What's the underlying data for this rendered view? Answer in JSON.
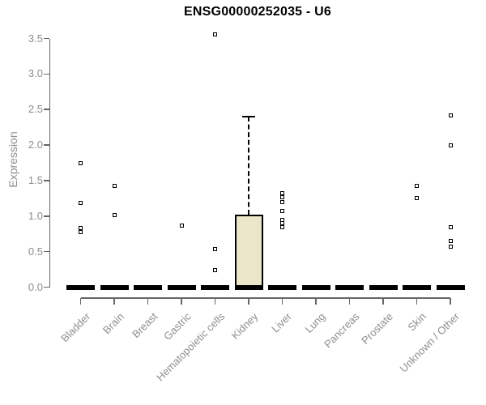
{
  "chart_data": {
    "type": "boxplot",
    "title": "ENSG00000252035 - U6",
    "ylabel": "Expression",
    "xlabel": "",
    "ylim": [
      0,
      3.5
    ],
    "yticks": [
      0.0,
      0.5,
      1.0,
      1.5,
      2.0,
      2.5,
      3.0,
      3.5
    ],
    "grid": false,
    "legend": "none",
    "x_label_rotation_deg": 45,
    "categories": [
      "Bladder",
      "Brain",
      "Breast",
      "Gastric",
      "Hematopoietic cells",
      "Kidney",
      "Liver",
      "Lung",
      "Pancreas",
      "Prostate",
      "Skin",
      "Unknown / Other"
    ],
    "boxes": [
      {
        "category": "Bladder",
        "q1": 0,
        "median": 0,
        "q3": 0,
        "whisker_low": 0,
        "whisker_high": 0,
        "outliers": [
          1.74,
          1.19,
          0.83,
          0.77
        ]
      },
      {
        "category": "Brain",
        "q1": 0,
        "median": 0,
        "q3": 0,
        "whisker_low": 0,
        "whisker_high": 0,
        "outliers": [
          1.43,
          1.02
        ]
      },
      {
        "category": "Breast",
        "q1": 0,
        "median": 0,
        "q3": 0,
        "whisker_low": 0,
        "whisker_high": 0,
        "outliers": []
      },
      {
        "category": "Gastric",
        "q1": 0,
        "median": 0,
        "q3": 0,
        "whisker_low": 0,
        "whisker_high": 0,
        "outliers": [
          0.87
        ]
      },
      {
        "category": "Hematopoietic cells",
        "q1": 0,
        "median": 0,
        "q3": 0,
        "whisker_low": 0,
        "whisker_high": 0,
        "outliers": [
          3.56,
          0.54,
          0.24
        ]
      },
      {
        "category": "Kidney",
        "q1": 0,
        "median": 0,
        "q3": 1.02,
        "whisker_low": 0,
        "whisker_high": 2.4,
        "outliers": []
      },
      {
        "category": "Liver",
        "q1": 0,
        "median": 0,
        "q3": 0,
        "whisker_low": 0,
        "whisker_high": 0,
        "outliers": [
          1.32,
          1.27,
          1.2,
          1.07,
          0.95,
          0.9,
          0.84
        ]
      },
      {
        "category": "Lung",
        "q1": 0,
        "median": 0,
        "q3": 0,
        "whisker_low": 0,
        "whisker_high": 0,
        "outliers": []
      },
      {
        "category": "Pancreas",
        "q1": 0,
        "median": 0,
        "q3": 0,
        "whisker_low": 0,
        "whisker_high": 0,
        "outliers": []
      },
      {
        "category": "Prostate",
        "q1": 0,
        "median": 0,
        "q3": 0,
        "whisker_low": 0,
        "whisker_high": 0,
        "outliers": []
      },
      {
        "category": "Skin",
        "q1": 0,
        "median": 0,
        "q3": 0,
        "whisker_low": 0,
        "whisker_high": 0,
        "outliers": [
          1.42,
          1.25
        ]
      },
      {
        "category": "Unknown / Other",
        "q1": 0,
        "median": 0,
        "q3": 0,
        "whisker_low": 0,
        "whisker_high": 0,
        "outliers": [
          2.42,
          2.0,
          0.84,
          0.65,
          0.57
        ]
      }
    ],
    "colors": {
      "box_fill": "#ebe5c9",
      "box_border": "#000000",
      "median_bar": "#000000",
      "axis_line": "#666666",
      "tick_text": "#8e8e8e",
      "title_text": "#000000"
    }
  }
}
